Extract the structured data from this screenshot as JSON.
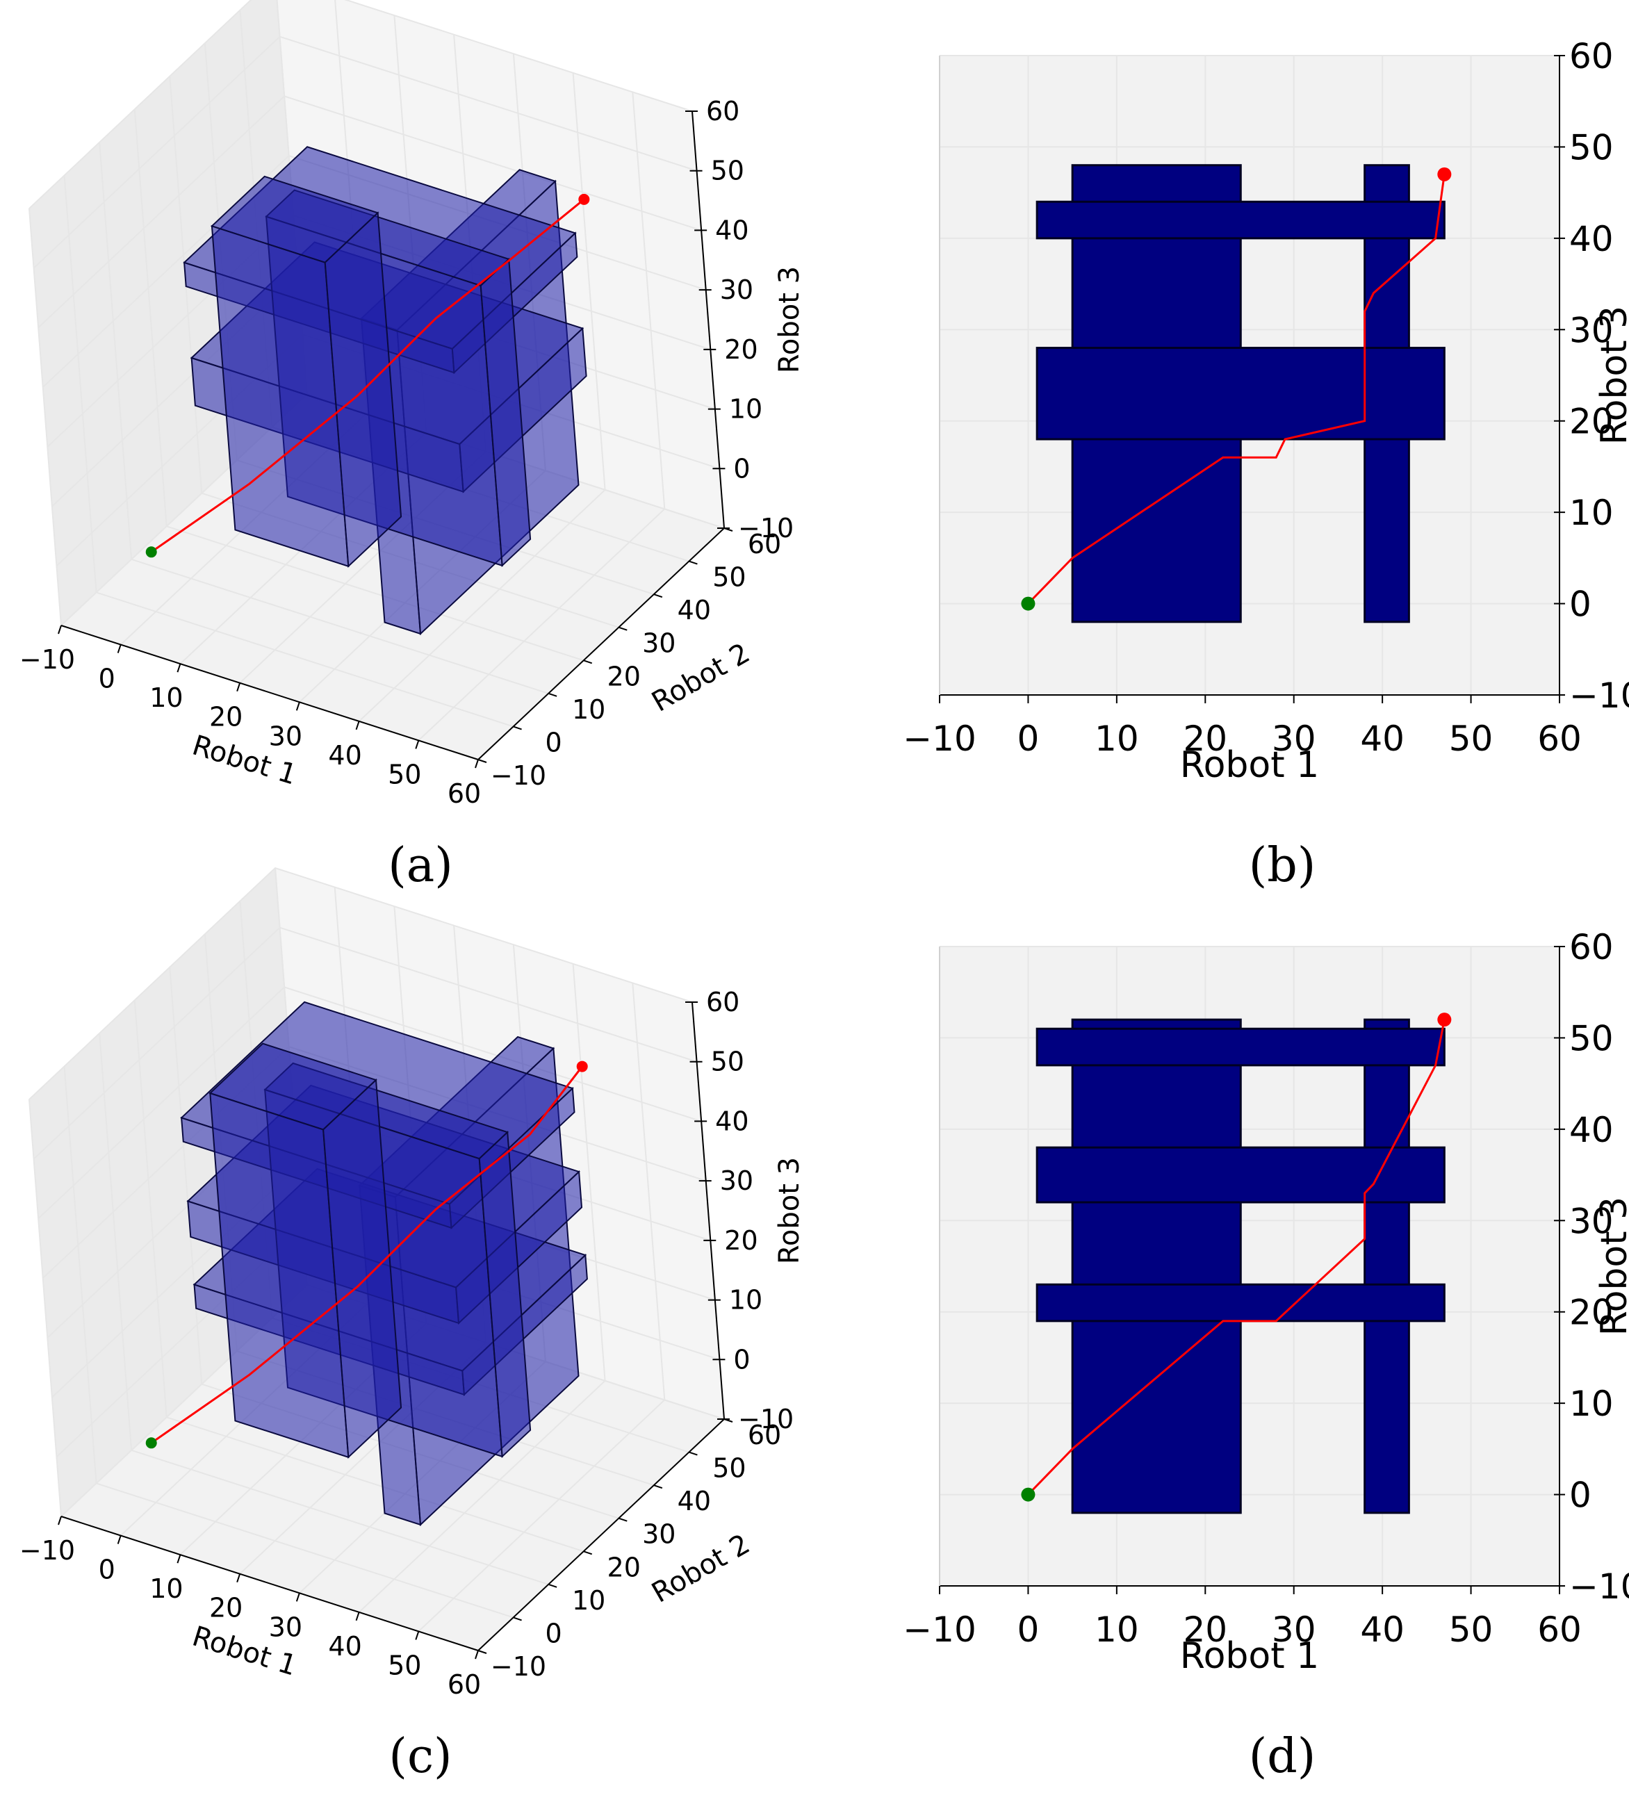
{
  "colors": {
    "obstacle_3d": "#1f1fa8",
    "obstacle_2d": "#000080",
    "path": "#ff0000",
    "start": "#008000",
    "goal": "#ff0000",
    "pane": "#f2f2f2",
    "grid": "#e6e6e6"
  },
  "chart_data": [
    {
      "type": "3d-box-plot",
      "caption": "(a)",
      "xlabel": "Robot 1",
      "ylabel": "Robot 2",
      "zlabel": "Robot 3",
      "xlim": [
        -10,
        60
      ],
      "ylim": [
        -10,
        60
      ],
      "zlim": [
        -10,
        60
      ],
      "xticks": [
        "−10",
        "0",
        "10",
        "20",
        "30",
        "40",
        "50",
        "60"
      ],
      "yticks": [
        "−10",
        "0",
        "10",
        "20",
        "30",
        "40",
        "50",
        "60"
      ],
      "zticks": [
        "−10",
        "0",
        "10",
        "20",
        "30",
        "40",
        "50",
        "60"
      ],
      "start": [
        0,
        0,
        0
      ],
      "goal": [
        48,
        48,
        48
      ],
      "path": [
        [
          0,
          0,
          0
        ],
        [
          10,
          12,
          8
        ],
        [
          22,
          24,
          20
        ],
        [
          30,
          34,
          30
        ],
        [
          40,
          40,
          40
        ],
        [
          48,
          48,
          48
        ]
      ],
      "obstacles": [
        {
          "x": [
            5,
            24
          ],
          "y": [
            15,
            30
          ],
          "z": [
            -3,
            48
          ]
        },
        {
          "x": [
            36,
            42
          ],
          "y": [
            5,
            50
          ],
          "z": [
            -3,
            48
          ]
        },
        {
          "x": [
            3,
            48
          ],
          "y": [
            10,
            45
          ],
          "z": [
            40,
            44
          ]
        },
        {
          "x": [
            3,
            48
          ],
          "y": [
            10,
            45
          ],
          "z": [
            20,
            28
          ]
        },
        {
          "x": [
            8,
            44
          ],
          "y": [
            25,
            33
          ],
          "z": [
            -2,
            45
          ]
        }
      ]
    },
    {
      "type": "box-plot-projection",
      "caption": "(b)",
      "xlabel": "Robot 1",
      "ylabel": "Robot 3",
      "xlim": [
        -10,
        60
      ],
      "ylim": [
        -10,
        60
      ],
      "xticks": [
        "−10",
        "0",
        "10",
        "20",
        "30",
        "40",
        "50",
        "60"
      ],
      "yticks": [
        "−10",
        "0",
        "10",
        "20",
        "30",
        "40",
        "50",
        "60"
      ],
      "start": [
        0,
        0
      ],
      "goal": [
        47,
        47
      ],
      "path": [
        [
          0,
          0
        ],
        [
          5,
          5
        ],
        [
          22,
          16
        ],
        [
          28,
          16
        ],
        [
          29,
          18
        ],
        [
          38,
          20
        ],
        [
          38,
          32
        ],
        [
          39,
          34
        ],
        [
          46,
          40
        ],
        [
          47,
          47
        ]
      ],
      "obstacles": [
        {
          "x": [
            5,
            24
          ],
          "y": [
            -2,
            48
          ]
        },
        {
          "x": [
            38,
            43
          ],
          "y": [
            -2,
            48
          ]
        },
        {
          "x": [
            1,
            47
          ],
          "y": [
            40,
            44
          ]
        },
        {
          "x": [
            1,
            47
          ],
          "y": [
            18,
            28
          ]
        }
      ]
    },
    {
      "type": "3d-box-plot",
      "caption": "(c)",
      "xlabel": "Robot 1",
      "ylabel": "Robot 2",
      "zlabel": "Robot 3",
      "xlim": [
        -10,
        60
      ],
      "ylim": [
        -10,
        60
      ],
      "zlim": [
        -10,
        60
      ],
      "xticks": [
        "−10",
        "0",
        "10",
        "20",
        "30",
        "40",
        "50",
        "60"
      ],
      "yticks": [
        "−10",
        "0",
        "10",
        "20",
        "30",
        "40",
        "50",
        "60"
      ],
      "zticks": [
        "−10",
        "0",
        "10",
        "20",
        "30",
        "40",
        "50",
        "60"
      ],
      "start": [
        0,
        0,
        0
      ],
      "goal": [
        48,
        48,
        52
      ],
      "path": [
        [
          0,
          0,
          0
        ],
        [
          10,
          12,
          8
        ],
        [
          22,
          24,
          20
        ],
        [
          30,
          34,
          30
        ],
        [
          42,
          42,
          42
        ],
        [
          48,
          48,
          52
        ]
      ],
      "obstacles": [
        {
          "x": [
            5,
            24
          ],
          "y": [
            15,
            30
          ],
          "z": [
            -3,
            52
          ]
        },
        {
          "x": [
            36,
            42
          ],
          "y": [
            5,
            50
          ],
          "z": [
            -3,
            52
          ]
        },
        {
          "x": [
            3,
            48
          ],
          "y": [
            10,
            45
          ],
          "z": [
            46,
            50
          ]
        },
        {
          "x": [
            3,
            48
          ],
          "y": [
            10,
            45
          ],
          "z": [
            30,
            36
          ]
        },
        {
          "x": [
            3,
            48
          ],
          "y": [
            10,
            45
          ],
          "z": [
            18,
            22
          ]
        },
        {
          "x": [
            8,
            44
          ],
          "y": [
            25,
            33
          ],
          "z": [
            -2,
            48
          ]
        }
      ]
    },
    {
      "type": "box-plot-projection",
      "caption": "(d)",
      "xlabel": "Robot 1",
      "ylabel": "Robot 3",
      "xlim": [
        -10,
        60
      ],
      "ylim": [
        -10,
        60
      ],
      "xticks": [
        "−10",
        "0",
        "10",
        "20",
        "30",
        "40",
        "50",
        "60"
      ],
      "yticks": [
        "−10",
        "0",
        "10",
        "20",
        "30",
        "40",
        "50",
        "60"
      ],
      "start": [
        0,
        0
      ],
      "goal": [
        47,
        52
      ],
      "path": [
        [
          0,
          0
        ],
        [
          5,
          5
        ],
        [
          22,
          19
        ],
        [
          28,
          19
        ],
        [
          38,
          28
        ],
        [
          38,
          33
        ],
        [
          39,
          34
        ],
        [
          46,
          47
        ],
        [
          47,
          52
        ]
      ],
      "obstacles": [
        {
          "x": [
            5,
            24
          ],
          "y": [
            -2,
            52
          ]
        },
        {
          "x": [
            38,
            43
          ],
          "y": [
            -2,
            52
          ]
        },
        {
          "x": [
            1,
            47
          ],
          "y": [
            47,
            51
          ]
        },
        {
          "x": [
            1,
            47
          ],
          "y": [
            32,
            38
          ]
        },
        {
          "x": [
            1,
            47
          ],
          "y": [
            19,
            23
          ]
        }
      ]
    }
  ]
}
